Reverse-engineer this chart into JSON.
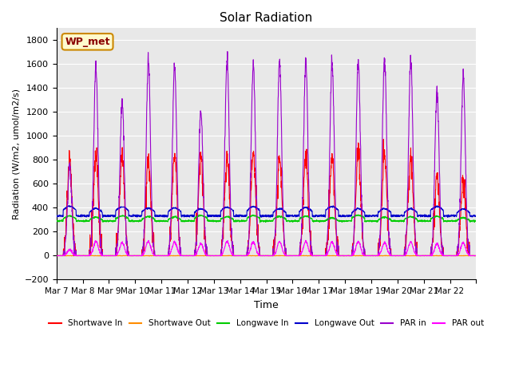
{
  "title": "Solar Radiation",
  "ylabel": "Radiation (W/m2, umol/m2/s)",
  "xlabel": "Time",
  "ylim": [
    -200,
    1900
  ],
  "yticks": [
    -200,
    0,
    200,
    400,
    600,
    800,
    1000,
    1200,
    1400,
    1600,
    1800
  ],
  "annotation": "WP_met",
  "xtick_positions": [
    0,
    1,
    2,
    3,
    4,
    5,
    6,
    7,
    8,
    9,
    10,
    11,
    12,
    13,
    14,
    15,
    16
  ],
  "xtick_labels": [
    "Mar 7",
    "Mar 8",
    "Mar 9",
    "Mar 10",
    "Mar 11",
    "Mar 12",
    "Mar 13",
    "Mar 14",
    "Mar 15",
    "Mar 16",
    "Mar 17",
    "Mar 18",
    "Mar 19",
    "Mar 20",
    "Mar 21",
    "Mar 22",
    ""
  ],
  "colors": {
    "shortwave_in": "#ff0000",
    "shortwave_out": "#ff8c00",
    "longwave_in": "#00cc00",
    "longwave_out": "#0000cc",
    "par_in": "#9900cc",
    "par_out": "#ff00ff"
  },
  "legend_labels": [
    "Shortwave In",
    "Shortwave Out",
    "Longwave In",
    "Longwave Out",
    "PAR in",
    "PAR out"
  ],
  "bg_color": "#e8e8e8",
  "n_days": 16,
  "pts_per_day": 144
}
